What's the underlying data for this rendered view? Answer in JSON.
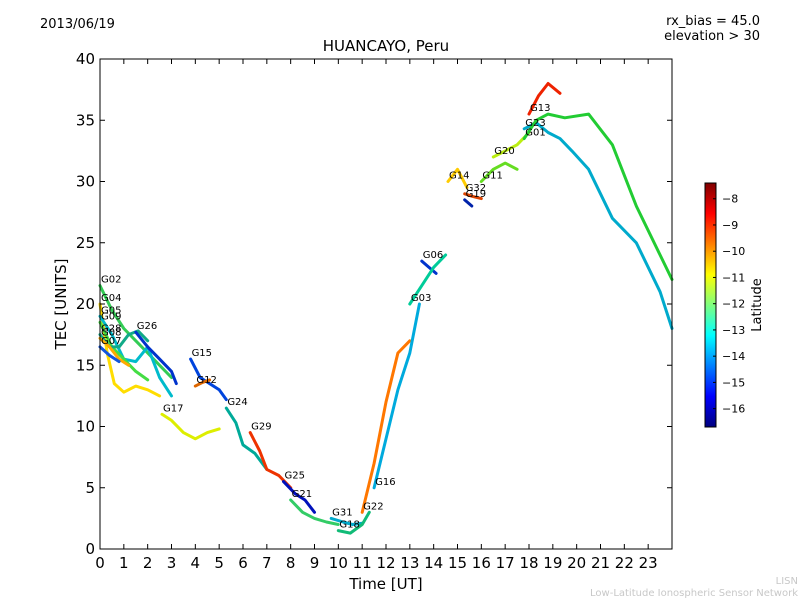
{
  "header": {
    "date": "2013/06/19",
    "rx_bias": "rx_bias = 45.0",
    "elevation": "elevation > 30",
    "title": "HUANCAYO, Peru"
  },
  "footer": {
    "credit_short": "LISN",
    "credit_long": "Low-Latitude Ionospheric Sensor Network"
  },
  "chart_data": {
    "type": "line",
    "title": "HUANCAYO, Peru",
    "xlabel": "Time [UT]",
    "ylabel": "TEC [UNITS]",
    "xlim": [
      0,
      24
    ],
    "ylim": [
      0,
      40
    ],
    "xticks": [
      0,
      1,
      2,
      3,
      4,
      5,
      6,
      7,
      8,
      9,
      10,
      11,
      12,
      13,
      14,
      15,
      16,
      17,
      18,
      19,
      20,
      21,
      22,
      23
    ],
    "yticks": [
      0,
      5,
      10,
      15,
      20,
      25,
      30,
      35,
      40
    ],
    "grid": false,
    "colorbar": {
      "label": "Latitude",
      "range": [
        -16.7,
        -7.4
      ],
      "ticks": [
        -8,
        -9,
        -10,
        -11,
        -12,
        -13,
        -14,
        -15,
        -16
      ],
      "colors": [
        "#00007f",
        "#0000ff",
        "#007fff",
        "#00ffff",
        "#7fff7f",
        "#ffff00",
        "#ff7f00",
        "#ff0000",
        "#7f0000"
      ]
    },
    "series": [
      {
        "name": "G02",
        "color": "#33cc55",
        "x": [
          0,
          0.5,
          1,
          1.5,
          2,
          2.5,
          3
        ],
        "y": [
          21.5,
          19.5,
          18,
          17,
          16,
          15,
          14
        ]
      },
      {
        "name": "G04",
        "color": "#ffdd00",
        "x": [
          0,
          0.3,
          0.6,
          1,
          1.5,
          2,
          2.5
        ],
        "y": [
          20,
          16,
          13.5,
          12.8,
          13.3,
          13,
          12.5
        ]
      },
      {
        "name": "G05",
        "color": "#00bbcc",
        "x": [
          0,
          0.5,
          1,
          1.5,
          2,
          2.5,
          3
        ],
        "y": [
          19,
          17.5,
          15.5,
          15.3,
          16.5,
          14,
          12.5
        ]
      },
      {
        "name": "G09",
        "color": "#44dd44",
        "x": [
          0,
          0.5,
          1,
          1.5,
          2
        ],
        "y": [
          18.5,
          16.5,
          15.5,
          14.5,
          13.8
        ]
      },
      {
        "name": "G28",
        "color": "#11aa88",
        "x": [
          0,
          0.4,
          0.8,
          1.2,
          1.6,
          2
        ],
        "y": [
          17.5,
          16.5,
          16.5,
          17.5,
          17.8,
          17
        ]
      },
      {
        "name": "G08",
        "color": "#ffaa00",
        "x": [
          0,
          0.4,
          0.8,
          1.2
        ],
        "y": [
          17.2,
          16.5,
          15.5,
          15
        ]
      },
      {
        "name": "G07",
        "color": "#1155dd",
        "x": [
          0,
          0.4,
          0.8
        ],
        "y": [
          16.5,
          15.8,
          15.3
        ]
      },
      {
        "name": "G26",
        "color": "#0033cc",
        "x": [
          1.5,
          2,
          2.5,
          3,
          3.2
        ],
        "y": [
          17.7,
          16.5,
          15.5,
          14.5,
          13.5
        ]
      },
      {
        "name": "G17",
        "color": "#ddee00",
        "x": [
          2.6,
          3,
          3.5,
          4,
          4.5,
          5
        ],
        "y": [
          11,
          10.5,
          9.5,
          9,
          9.5,
          9.8
        ]
      },
      {
        "name": "G15",
        "color": "#0044dd",
        "x": [
          3.8,
          4.2,
          4.6,
          5,
          5.3
        ],
        "y": [
          15.5,
          14,
          13.5,
          13,
          12.2
        ]
      },
      {
        "name": "G12",
        "color": "#dd6600",
        "x": [
          4,
          4.3,
          4.6
        ],
        "y": [
          13.3,
          13.6,
          13.8
        ]
      },
      {
        "name": "G24",
        "color": "#00aa99",
        "x": [
          5.3,
          5.7,
          6,
          6.5,
          7
        ],
        "y": [
          11.5,
          10.3,
          8.5,
          7.8,
          6.5
        ]
      },
      {
        "name": "G29",
        "color": "#ee3300",
        "x": [
          6.3,
          6.7,
          7,
          7.5,
          8
        ],
        "y": [
          9.5,
          8,
          6.5,
          6,
          5
        ]
      },
      {
        "name": "G25",
        "color": "#0011bb",
        "x": [
          7.7,
          8.2,
          8.6,
          9
        ],
        "y": [
          5.5,
          4.5,
          4,
          3
        ]
      },
      {
        "name": "G21",
        "color": "#33cc66",
        "x": [
          8,
          8.5,
          9,
          9.5,
          10
        ],
        "y": [
          4,
          3,
          2.5,
          2.2,
          2
        ]
      },
      {
        "name": "G31",
        "color": "#00aacc",
        "x": [
          9.7,
          10.2,
          10.6,
          11
        ],
        "y": [
          2.5,
          2.2,
          2,
          2.1
        ]
      },
      {
        "name": "G18",
        "color": "#11bb77",
        "x": [
          10,
          10.5,
          11,
          11.3
        ],
        "y": [
          1.5,
          1.3,
          2,
          3
        ]
      },
      {
        "name": "G22",
        "color": "#ff7700",
        "x": [
          11,
          11.5,
          12,
          12.5,
          13
        ],
        "y": [
          3,
          7,
          12,
          16,
          17
        ]
      },
      {
        "name": "G16",
        "color": "#00aadd",
        "x": [
          11.5,
          12,
          12.5,
          13,
          13.4
        ],
        "y": [
          5,
          9,
          13,
          16,
          20
        ]
      },
      {
        "name": "G06",
        "color": "#0033cc",
        "x": [
          13.5,
          13.8,
          14.1
        ],
        "y": [
          23.5,
          23,
          22.5
        ]
      },
      {
        "name": "G03",
        "color": "#00cc99",
        "x": [
          13,
          13.5,
          14,
          14.5
        ],
        "y": [
          20,
          21.5,
          23,
          24
        ]
      },
      {
        "name": "G14",
        "color": "#ffcc00",
        "x": [
          14.6,
          15,
          15.4
        ],
        "y": [
          30,
          31,
          29.5
        ]
      },
      {
        "name": "G32",
        "color": "#dd4400",
        "x": [
          15.3,
          15.6,
          16
        ],
        "y": [
          29,
          28.8,
          28.6
        ]
      },
      {
        "name": "G19",
        "color": "#0022aa",
        "x": [
          15.3,
          15.6
        ],
        "y": [
          28.5,
          28
        ]
      },
      {
        "name": "G11",
        "color": "#66dd22",
        "x": [
          16,
          16.5,
          17,
          17.5
        ],
        "y": [
          30,
          31,
          31.5,
          31
        ]
      },
      {
        "name": "G20",
        "color": "#bbee11",
        "x": [
          16.5,
          17,
          17.5,
          18
        ],
        "y": [
          32,
          32.5,
          33,
          34
        ]
      },
      {
        "name": "G23",
        "color": "#00aacc",
        "x": [
          17.8,
          18.3,
          18.8,
          19.3,
          19.8,
          20.5,
          21.5,
          22.5,
          23.5,
          24
        ],
        "y": [
          34.3,
          34.8,
          34,
          33.5,
          32.5,
          31,
          27,
          25,
          21,
          18
        ]
      },
      {
        "name": "G01",
        "color": "#22cc33",
        "x": [
          17.8,
          18.3,
          18.8,
          19.5,
          20.5,
          21.5,
          22.5,
          23.5,
          24
        ],
        "y": [
          33.5,
          35,
          35.5,
          35.2,
          35.5,
          33,
          28,
          24,
          22
        ]
      },
      {
        "name": "G13",
        "color": "#ee2200",
        "x": [
          18,
          18.4,
          18.8,
          19.3
        ],
        "y": [
          35.5,
          37,
          38,
          37.2
        ]
      }
    ]
  }
}
